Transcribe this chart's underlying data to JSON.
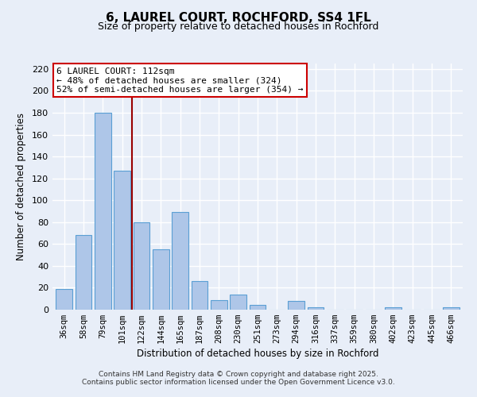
{
  "title": "6, LAUREL COURT, ROCHFORD, SS4 1FL",
  "subtitle": "Size of property relative to detached houses in Rochford",
  "xlabel": "Distribution of detached houses by size in Rochford",
  "ylabel": "Number of detached properties",
  "categories": [
    "36sqm",
    "58sqm",
    "79sqm",
    "101sqm",
    "122sqm",
    "144sqm",
    "165sqm",
    "187sqm",
    "208sqm",
    "230sqm",
    "251sqm",
    "273sqm",
    "294sqm",
    "316sqm",
    "337sqm",
    "359sqm",
    "380sqm",
    "402sqm",
    "423sqm",
    "445sqm",
    "466sqm"
  ],
  "values": [
    19,
    68,
    180,
    127,
    80,
    55,
    89,
    26,
    9,
    14,
    4,
    0,
    8,
    2,
    0,
    0,
    0,
    2,
    0,
    0,
    2
  ],
  "bar_color": "#aec6e8",
  "bar_edge_color": "#5a9fd4",
  "background_color": "#e8eef8",
  "grid_color": "#ffffff",
  "vline_x": 3.5,
  "vline_color": "#990000",
  "annotation_line1": "6 LAUREL COURT: 112sqm",
  "annotation_line2": "← 48% of detached houses are smaller (324)",
  "annotation_line3": "52% of semi-detached houses are larger (354) →",
  "annotation_box_color": "#ffffff",
  "annotation_box_edge": "#cc0000",
  "ylim": [
    0,
    225
  ],
  "yticks": [
    0,
    20,
    40,
    60,
    80,
    100,
    120,
    140,
    160,
    180,
    200,
    220
  ],
  "footer1": "Contains HM Land Registry data © Crown copyright and database right 2025.",
  "footer2": "Contains public sector information licensed under the Open Government Licence v3.0."
}
